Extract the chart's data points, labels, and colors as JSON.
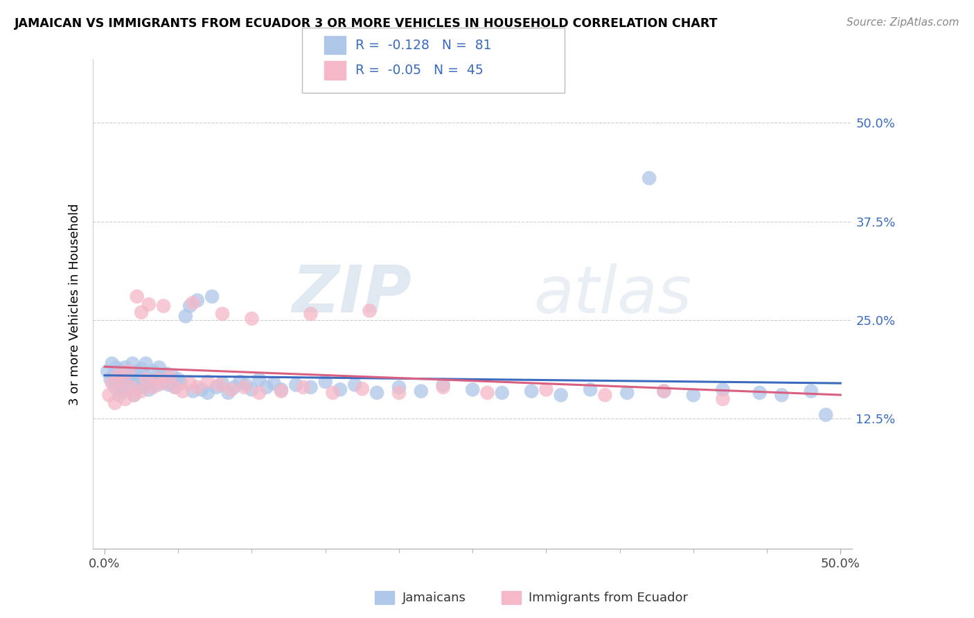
{
  "title": "JAMAICAN VS IMMIGRANTS FROM ECUADOR 3 OR MORE VEHICLES IN HOUSEHOLD CORRELATION CHART",
  "source": "Source: ZipAtlas.com",
  "ylabel": "3 or more Vehicles in Household",
  "ytick_labels": [
    "12.5%",
    "25.0%",
    "37.5%",
    "50.0%"
  ],
  "ytick_values": [
    0.125,
    0.25,
    0.375,
    0.5
  ],
  "xlim": [
    0.0,
    0.5
  ],
  "ylim": [
    -0.04,
    0.58
  ],
  "legend_label1": "Jamaicans",
  "legend_label2": "Immigrants from Ecuador",
  "r1": -0.128,
  "n1": 81,
  "r2": -0.05,
  "n2": 45,
  "color_blue": "#aec6e8",
  "color_pink": "#f4b8c8",
  "line_color_blue": "#3a6bbf",
  "line_color_pink": "#d96080",
  "watermark_zip": "ZIP",
  "watermark_atlas": "atlas",
  "blue_x": [
    0.002,
    0.004,
    0.005,
    0.006,
    0.007,
    0.008,
    0.01,
    0.01,
    0.011,
    0.012,
    0.013,
    0.014,
    0.015,
    0.016,
    0.017,
    0.018,
    0.019,
    0.02,
    0.021,
    0.022,
    0.023,
    0.024,
    0.025,
    0.026,
    0.027,
    0.028,
    0.03,
    0.031,
    0.033,
    0.034,
    0.036,
    0.037,
    0.038,
    0.04,
    0.042,
    0.044,
    0.046,
    0.048,
    0.05,
    0.052,
    0.055,
    0.058,
    0.06,
    0.063,
    0.066,
    0.07,
    0.073,
    0.076,
    0.08,
    0.084,
    0.088,
    0.092,
    0.096,
    0.1,
    0.105,
    0.11,
    0.115,
    0.12,
    0.13,
    0.14,
    0.15,
    0.16,
    0.17,
    0.185,
    0.2,
    0.215,
    0.23,
    0.25,
    0.27,
    0.29,
    0.31,
    0.33,
    0.355,
    0.38,
    0.4,
    0.42,
    0.445,
    0.46,
    0.48,
    0.49,
    0.37
  ],
  "blue_y": [
    0.185,
    0.175,
    0.195,
    0.18,
    0.165,
    0.19,
    0.155,
    0.175,
    0.185,
    0.17,
    0.16,
    0.19,
    0.175,
    0.185,
    0.165,
    0.18,
    0.195,
    0.155,
    0.175,
    0.185,
    0.168,
    0.178,
    0.188,
    0.165,
    0.18,
    0.195,
    0.162,
    0.172,
    0.185,
    0.175,
    0.168,
    0.19,
    0.178,
    0.172,
    0.182,
    0.168,
    0.18,
    0.165,
    0.175,
    0.17,
    0.255,
    0.268,
    0.16,
    0.275,
    0.162,
    0.158,
    0.28,
    0.165,
    0.17,
    0.158,
    0.165,
    0.172,
    0.168,
    0.162,
    0.175,
    0.165,
    0.17,
    0.162,
    0.168,
    0.165,
    0.172,
    0.162,
    0.168,
    0.158,
    0.165,
    0.16,
    0.168,
    0.162,
    0.158,
    0.16,
    0.155,
    0.162,
    0.158,
    0.16,
    0.155,
    0.162,
    0.158,
    0.155,
    0.16,
    0.13,
    0.43
  ],
  "pink_x": [
    0.003,
    0.005,
    0.007,
    0.009,
    0.01,
    0.012,
    0.014,
    0.016,
    0.018,
    0.02,
    0.022,
    0.025,
    0.028,
    0.03,
    0.033,
    0.036,
    0.04,
    0.044,
    0.048,
    0.053,
    0.058,
    0.063,
    0.07,
    0.078,
    0.086,
    0.095,
    0.105,
    0.12,
    0.135,
    0.155,
    0.175,
    0.2,
    0.23,
    0.26,
    0.3,
    0.34,
    0.38,
    0.42,
    0.025,
    0.04,
    0.06,
    0.08,
    0.1,
    0.14,
    0.18
  ],
  "pink_y": [
    0.155,
    0.17,
    0.145,
    0.18,
    0.16,
    0.175,
    0.15,
    0.185,
    0.165,
    0.155,
    0.28,
    0.16,
    0.175,
    0.27,
    0.165,
    0.175,
    0.17,
    0.178,
    0.165,
    0.16,
    0.17,
    0.165,
    0.172,
    0.168,
    0.162,
    0.165,
    0.158,
    0.16,
    0.165,
    0.158,
    0.163,
    0.158,
    0.165,
    0.158,
    0.162,
    0.155,
    0.16,
    0.15,
    0.26,
    0.268,
    0.272,
    0.258,
    0.252,
    0.258,
    0.262
  ]
}
